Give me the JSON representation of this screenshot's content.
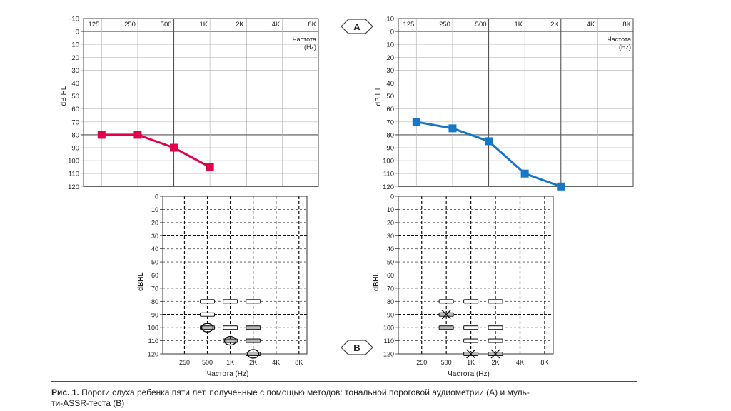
{
  "colors": {
    "left_ear": "#e5004f",
    "right_ear": "#1677c8",
    "caption_rule": "#d0006f"
  },
  "panel_labels": {
    "a": "A",
    "b": "B"
  },
  "chart_data": [
    {
      "id": "A-left",
      "type": "line",
      "title": "",
      "ylabel": "dB HL",
      "x_axis_label": "Частота",
      "x_axis_label_unit": "(Hz)",
      "x_tick_labels": [
        "125",
        "250",
        "500",
        "1K",
        "2K",
        "4K",
        "8K"
      ],
      "y_tick_labels": [
        "-10",
        "0",
        "10",
        "20",
        "30",
        "40",
        "50",
        "60",
        "70",
        "80",
        "90",
        "100",
        "110",
        "120"
      ],
      "ylim": [
        -10,
        120
      ],
      "y_inverted": true,
      "series": [
        {
          "name": "left-ear",
          "x": [
            "125",
            "250",
            "500",
            "1K"
          ],
          "values": [
            80,
            80,
            90,
            105
          ]
        }
      ]
    },
    {
      "id": "A-right",
      "type": "line",
      "title": "",
      "ylabel": "dB HL",
      "x_axis_label": "Частота",
      "x_axis_label_unit": "(Hz)",
      "x_tick_labels": [
        "125",
        "250",
        "500",
        "1K",
        "2K",
        "4K",
        "8K"
      ],
      "y_tick_labels": [
        "-10",
        "0",
        "10",
        "20",
        "30",
        "40",
        "50",
        "60",
        "70",
        "80",
        "90",
        "100",
        "110",
        "120"
      ],
      "ylim": [
        -10,
        120
      ],
      "y_inverted": true,
      "series": [
        {
          "name": "right-ear",
          "x": [
            "125",
            "250",
            "500",
            "1K",
            "2K"
          ],
          "values": [
            70,
            75,
            85,
            110,
            120
          ]
        }
      ]
    },
    {
      "id": "B-left",
      "type": "scatter",
      "title": "",
      "ylabel": "dBHL",
      "xlabel": "Частота (Hz)",
      "x_tick_labels": [
        "250",
        "500",
        "1K",
        "2K",
        "4K",
        "8K"
      ],
      "y_tick_labels": [
        "0",
        "10",
        "20",
        "30",
        "40",
        "50",
        "60",
        "70",
        "80",
        "90",
        "100",
        "110",
        "120"
      ],
      "ylim": [
        0,
        120
      ],
      "y_inverted": true,
      "markers": [
        {
          "x": "500",
          "y": 80,
          "type": "open"
        },
        {
          "x": "500",
          "y": 90,
          "type": "open"
        },
        {
          "x": "500",
          "y": 100,
          "type": "filled-circle"
        },
        {
          "x": "1K",
          "y": 80,
          "type": "open"
        },
        {
          "x": "1K",
          "y": 100,
          "type": "open"
        },
        {
          "x": "1K",
          "y": 110,
          "type": "filled-circle"
        },
        {
          "x": "2K",
          "y": 80,
          "type": "open"
        },
        {
          "x": "2K",
          "y": 100,
          "type": "filled"
        },
        {
          "x": "2K",
          "y": 110,
          "type": "filled"
        },
        {
          "x": "2K",
          "y": 120,
          "type": "filled-circle"
        }
      ]
    },
    {
      "id": "B-right",
      "type": "scatter",
      "title": "",
      "ylabel": "dBHL",
      "xlabel": "Частота (Hz)",
      "x_tick_labels": [
        "250",
        "500",
        "1K",
        "2K",
        "4K",
        "8K"
      ],
      "y_tick_labels": [
        "0",
        "10",
        "20",
        "30",
        "40",
        "50",
        "60",
        "70",
        "80",
        "90",
        "100",
        "110",
        "120"
      ],
      "ylim": [
        0,
        120
      ],
      "y_inverted": true,
      "markers": [
        {
          "x": "500",
          "y": 80,
          "type": "open"
        },
        {
          "x": "500",
          "y": 90,
          "type": "filled-x"
        },
        {
          "x": "500",
          "y": 100,
          "type": "filled"
        },
        {
          "x": "1K",
          "y": 80,
          "type": "open"
        },
        {
          "x": "1K",
          "y": 100,
          "type": "open"
        },
        {
          "x": "1K",
          "y": 110,
          "type": "open"
        },
        {
          "x": "1K",
          "y": 120,
          "type": "filled-x"
        },
        {
          "x": "2K",
          "y": 80,
          "type": "open"
        },
        {
          "x": "2K",
          "y": 100,
          "type": "open"
        },
        {
          "x": "2K",
          "y": 110,
          "type": "open"
        },
        {
          "x": "2K",
          "y": 120,
          "type": "filled-x"
        }
      ]
    }
  ],
  "caption": {
    "bold": "Рис. 1.",
    "text": " Пороги слуха ребенка пяти лет, полученные с помощью методов: тональной пороговой аудиометрии (А) и муль-",
    "line2": "ти-ASSR-теста (В)"
  }
}
